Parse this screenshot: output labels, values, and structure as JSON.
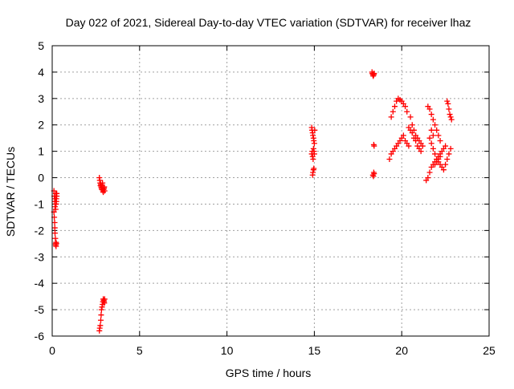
{
  "chart_data": {
    "type": "scatter",
    "title": "Day 022 of 2021, Sidereal Day-to-day VTEC variation (SDTVAR) for receiver lhaz",
    "xlabel": "GPS time / hours",
    "ylabel": "SDTVAR / TECUs",
    "xlim": [
      0,
      25
    ],
    "ylim": [
      -6,
      5
    ],
    "x_ticks": [
      0,
      5,
      10,
      15,
      20,
      25
    ],
    "y_ticks": [
      -6,
      -5,
      -4,
      -3,
      -2,
      -1,
      0,
      1,
      2,
      3,
      4,
      5
    ],
    "grid": true,
    "marker": "plus",
    "color": "#ff0000",
    "series": [
      {
        "x": [
          0.1,
          0.12,
          0.14,
          0.16,
          0.18,
          0.2,
          0.22,
          0.24,
          0.26,
          0.1,
          0.12,
          0.14,
          0.15,
          0.16,
          0.18,
          0.2,
          0.22,
          0.2,
          0.22,
          0.24,
          0.2,
          0.22,
          0.24,
          0.26,
          2.7,
          2.72,
          2.75,
          2.78,
          2.8,
          2.82,
          2.85,
          2.88,
          2.9,
          2.92,
          2.95,
          2.97,
          2.98,
          3.0,
          2.7,
          2.72,
          2.74,
          2.76,
          2.78,
          2.8,
          2.82,
          2.84,
          2.86,
          2.88,
          2.9,
          2.92,
          2.94,
          2.96,
          2.98,
          3.0,
          14.85,
          14.87,
          14.9,
          14.92,
          14.95,
          14.97,
          15.0,
          15.02,
          14.85,
          14.88,
          14.9,
          14.93,
          14.95,
          14.98,
          15.0,
          14.9,
          14.92,
          14.95,
          14.97,
          18.3,
          18.32,
          18.35,
          18.37,
          18.4,
          18.42,
          18.4,
          18.42,
          18.35,
          18.38,
          18.4,
          18.42,
          19.3,
          19.4,
          19.5,
          19.6,
          19.7,
          19.8,
          19.9,
          20.0,
          20.1,
          20.2,
          20.3,
          20.4,
          19.4,
          19.5,
          19.6,
          19.7,
          19.8,
          19.9,
          20.0,
          20.1,
          20.2,
          20.3,
          20.5,
          20.6,
          20.7,
          20.8,
          20.9,
          21.0,
          21.1,
          21.2,
          20.4,
          20.5,
          20.6,
          20.7,
          20.8,
          20.9,
          21.0,
          21.1,
          21.4,
          21.5,
          21.6,
          21.7,
          21.8,
          21.9,
          22.0,
          22.1,
          22.2,
          22.3,
          22.4,
          22.5,
          21.5,
          21.6,
          21.7,
          21.8,
          21.9,
          22.0,
          22.1,
          22.2,
          21.6,
          21.7,
          21.8,
          21.9,
          22.0,
          22.1,
          22.2,
          22.3,
          22.4,
          22.5,
          22.6,
          22.7,
          22.8,
          22.6,
          22.65,
          22.7,
          22.75,
          22.8,
          22.85,
          21.9,
          22.0,
          22.1,
          22.2,
          21.7,
          21.8
        ],
        "y": [
          -0.5,
          -0.7,
          -0.9,
          -1.1,
          -0.8,
          -0.6,
          -1.0,
          -0.9,
          -0.7,
          -1.3,
          -1.5,
          -1.7,
          -1.9,
          -2.1,
          -2.3,
          -2.5,
          -2.6,
          -2.55,
          -2.45,
          -2.5,
          -1.2,
          -1.0,
          -0.8,
          -0.6,
          -5.8,
          -5.7,
          -5.6,
          -5.4,
          -5.2,
          -5.0,
          -4.9,
          -4.8,
          -4.7,
          -4.6,
          -4.65,
          -4.7,
          -4.75,
          -4.6,
          0.0,
          -0.1,
          -0.2,
          -0.3,
          -0.25,
          -0.35,
          -0.4,
          -0.45,
          -0.3,
          -0.2,
          -0.5,
          -0.55,
          -0.45,
          -0.4,
          -0.35,
          -0.5,
          1.9,
          1.8,
          1.7,
          1.6,
          1.5,
          1.4,
          1.3,
          1.8,
          0.9,
          1.0,
          0.8,
          0.7,
          1.1,
          1.0,
          0.9,
          0.1,
          0.2,
          0.3,
          0.35,
          4.0,
          3.95,
          3.9,
          3.85,
          3.9,
          3.95,
          1.25,
          1.2,
          0.1,
          0.05,
          0.2,
          0.15,
          0.7,
          0.9,
          1.0,
          1.1,
          1.2,
          1.3,
          1.4,
          1.5,
          1.6,
          1.4,
          1.3,
          1.2,
          2.3,
          2.5,
          2.7,
          2.9,
          3.0,
          2.95,
          2.9,
          2.8,
          2.7,
          2.5,
          2.3,
          2.0,
          1.8,
          1.6,
          1.5,
          1.4,
          1.3,
          1.2,
          1.9,
          1.8,
          1.7,
          1.5,
          1.4,
          1.2,
          1.1,
          1.0,
          -0.1,
          0.0,
          0.2,
          0.4,
          0.5,
          0.6,
          0.7,
          0.8,
          0.9,
          1.0,
          1.1,
          1.2,
          2.7,
          2.6,
          2.4,
          2.2,
          2.0,
          1.8,
          1.6,
          1.4,
          1.5,
          1.3,
          1.1,
          0.9,
          0.7,
          0.6,
          0.5,
          0.4,
          0.3,
          0.5,
          0.7,
          0.9,
          1.1,
          2.9,
          2.8,
          2.6,
          2.4,
          2.3,
          2.2,
          0.5,
          0.6,
          0.7,
          0.8,
          1.8,
          1.6
        ]
      }
    ]
  }
}
